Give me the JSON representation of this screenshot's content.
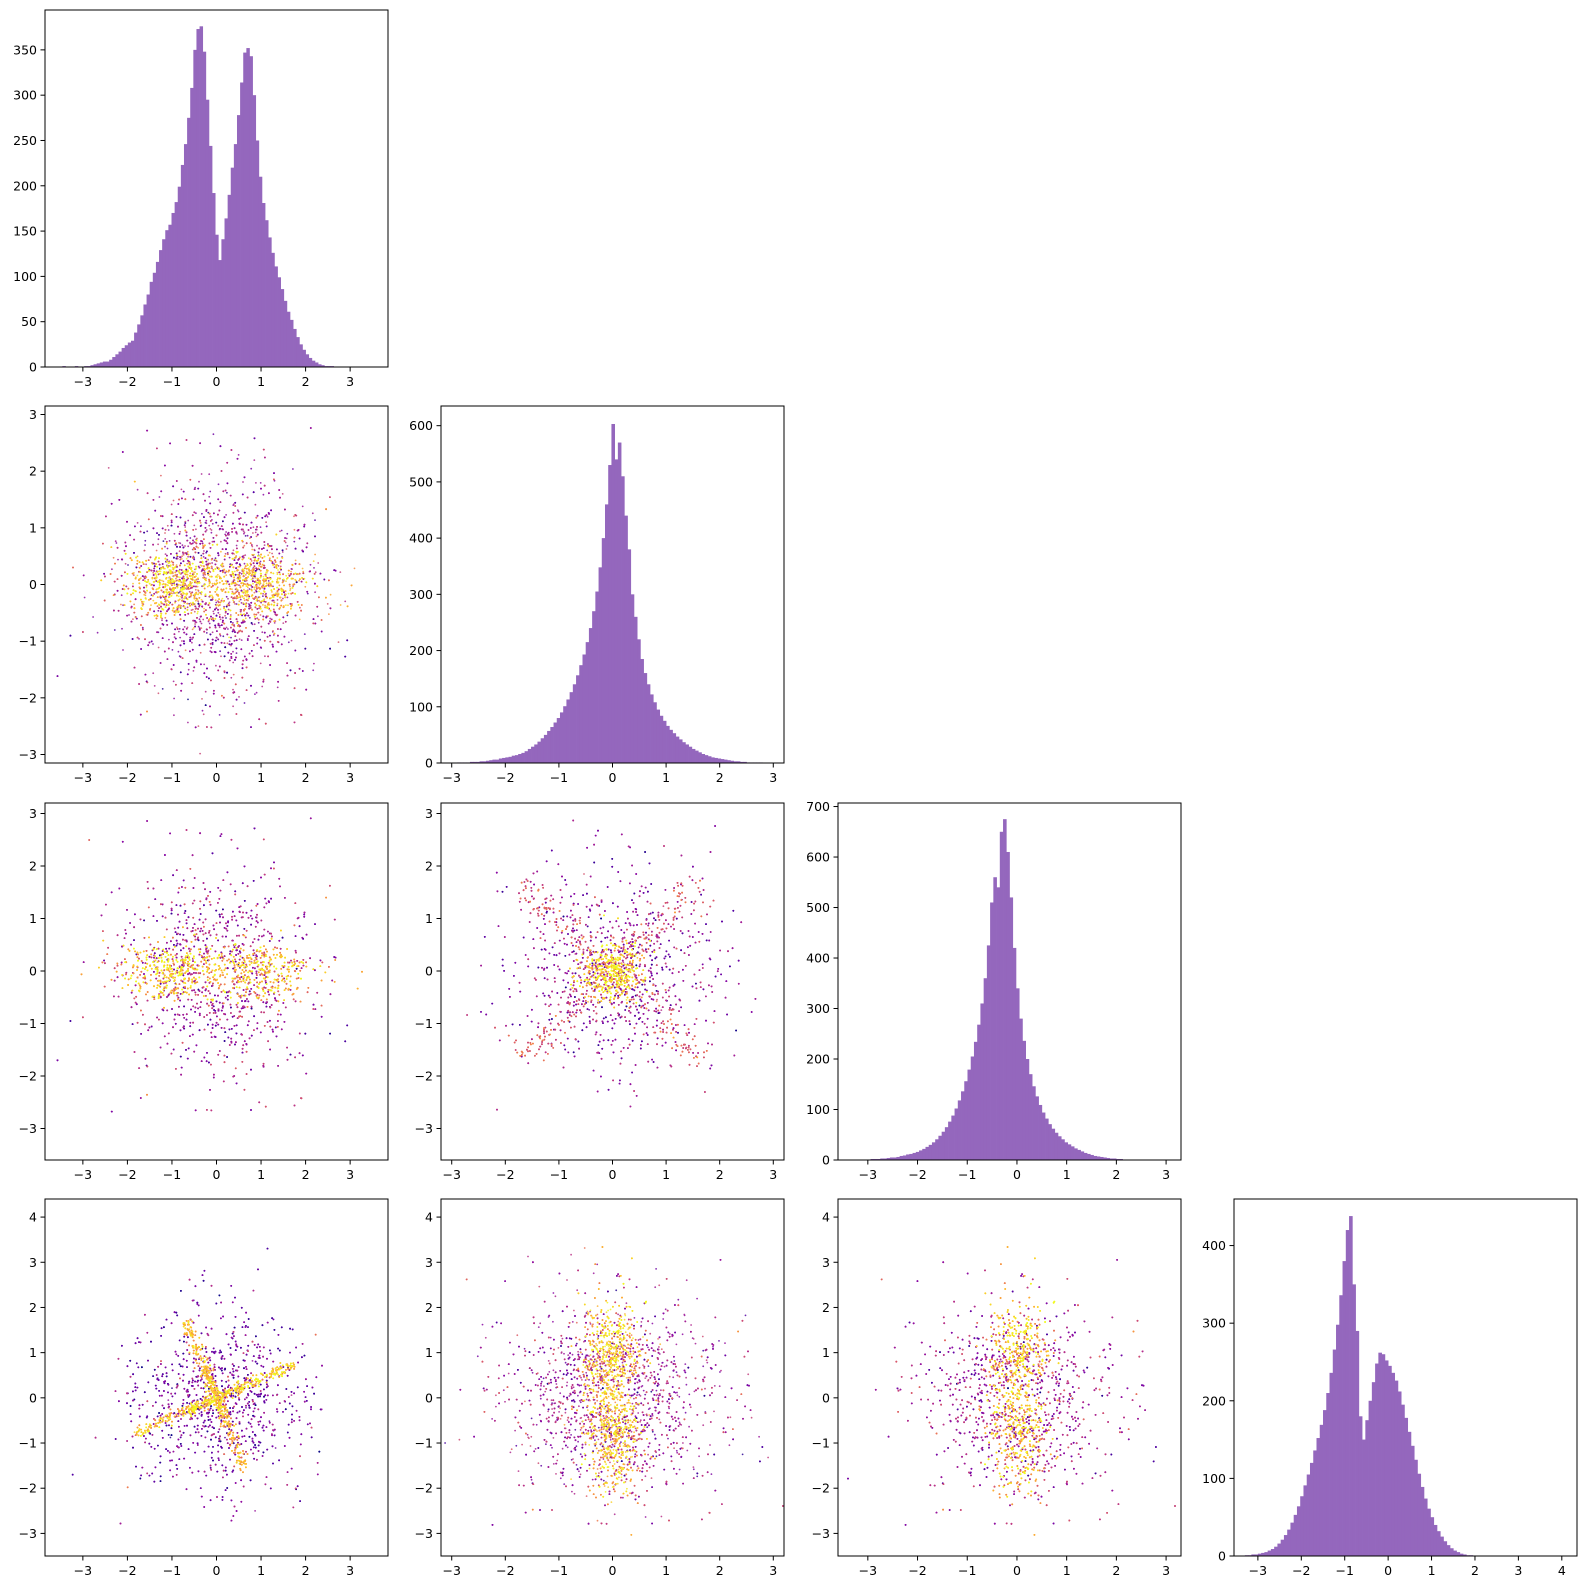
{
  "chart_data": [
    {
      "id": "hist-1",
      "type": "bar",
      "row": 0,
      "col": 0,
      "title": "",
      "xlabel": "",
      "ylabel": "",
      "color": "#9467bd",
      "xlim": [
        -3.85,
        3.85
      ],
      "ylim": [
        0,
        394
      ],
      "xticks": [
        -3,
        -2,
        -1,
        0,
        1,
        2,
        3
      ],
      "yticks": [
        0,
        50,
        100,
        150,
        200,
        250,
        300,
        350
      ],
      "bin_start": -3.6,
      "bin_width": 0.07,
      "counts": [
        0,
        0,
        1,
        0,
        0,
        0,
        1,
        0,
        0,
        1,
        1,
        2,
        3,
        4,
        5,
        6,
        6,
        8,
        11,
        14,
        17,
        21,
        24,
        27,
        29,
        38,
        47,
        57,
        69,
        80,
        94,
        104,
        116,
        129,
        141,
        151,
        157,
        170,
        182,
        199,
        223,
        246,
        275,
        308,
        350,
        373,
        376,
        348,
        295,
        244,
        192,
        146,
        118,
        141,
        164,
        190,
        220,
        246,
        278,
        314,
        347,
        352,
        343,
        300,
        250,
        210,
        181,
        162,
        143,
        126,
        111,
        99,
        86,
        73,
        61,
        52,
        42,
        33,
        25,
        19,
        14,
        10,
        7,
        5,
        3,
        2,
        1,
        1,
        1,
        0,
        0,
        0,
        0,
        0,
        0,
        0,
        0,
        0,
        0,
        0,
        0,
        0,
        0,
        0,
        0,
        0,
        0,
        0,
        0,
        0
      ]
    },
    {
      "id": "hist-2",
      "type": "bar",
      "row": 1,
      "col": 1,
      "title": "",
      "xlabel": "",
      "ylabel": "",
      "color": "#9467bd",
      "xlim": [
        -3.2,
        3.2
      ],
      "ylim": [
        0,
        635
      ],
      "xticks": [
        -3,
        -2,
        -1,
        0,
        1,
        2,
        3
      ],
      "yticks": [
        0,
        100,
        200,
        300,
        400,
        500,
        600
      ],
      "bin_start": -2.9,
      "bin_width": 0.06,
      "counts": [
        1,
        1,
        1,
        1,
        2,
        2,
        2,
        3,
        3,
        4,
        5,
        6,
        6,
        8,
        9,
        10,
        11,
        13,
        14,
        16,
        18,
        21,
        25,
        29,
        33,
        38,
        44,
        50,
        57,
        64,
        72,
        80,
        90,
        101,
        113,
        126,
        140,
        156,
        174,
        193,
        215,
        240,
        270,
        305,
        348,
        400,
        460,
        530,
        603,
        540,
        570,
        510,
        440,
        380,
        300,
        260,
        220,
        185,
        160,
        140,
        122,
        108,
        95,
        84,
        75,
        66,
        59,
        53,
        47,
        42,
        37,
        33,
        29,
        25,
        22,
        19,
        16,
        14,
        12,
        10,
        9,
        8,
        7,
        6,
        5,
        4,
        3,
        3,
        2,
        2,
        1,
        1,
        1,
        1,
        1,
        0,
        0,
        0,
        0,
        0
      ]
    },
    {
      "id": "hist-3",
      "type": "bar",
      "row": 2,
      "col": 2,
      "title": "",
      "xlabel": "",
      "ylabel": "",
      "color": "#9467bd",
      "xlim": [
        -3.6,
        3.3
      ],
      "ylim": [
        0,
        707
      ],
      "xticks": [
        -3,
        -2,
        -1,
        0,
        1,
        2,
        3
      ],
      "yticks": [
        0,
        100,
        200,
        300,
        400,
        500,
        600,
        700
      ],
      "bin_start": -3.4,
      "bin_width": 0.065,
      "counts": [
        0,
        0,
        0,
        1,
        0,
        1,
        1,
        2,
        2,
        2,
        3,
        3,
        4,
        5,
        5,
        6,
        8,
        9,
        11,
        12,
        14,
        16,
        19,
        22,
        26,
        30,
        35,
        41,
        48,
        56,
        65,
        76,
        88,
        102,
        118,
        136,
        156,
        179,
        205,
        234,
        268,
        310,
        360,
        425,
        510,
        560,
        540,
        650,
        675,
        610,
        520,
        420,
        340,
        280,
        236,
        200,
        170,
        146,
        126,
        109,
        94,
        82,
        71,
        62,
        54,
        47,
        41,
        35,
        31,
        27,
        23,
        20,
        17,
        14,
        12,
        10,
        8,
        7,
        6,
        5,
        4,
        3,
        3,
        2,
        2,
        1,
        1,
        1,
        1,
        0,
        0,
        0,
        0,
        0,
        0,
        0,
        0,
        0,
        0,
        0,
        0,
        0,
        0,
        0,
        0,
        0
      ]
    },
    {
      "id": "hist-4",
      "type": "bar",
      "row": 3,
      "col": 3,
      "title": "",
      "xlabel": "",
      "ylabel": "",
      "color": "#9467bd",
      "xlim": [
        -3.55,
        4.35
      ],
      "ylim": [
        0,
        460
      ],
      "xticks": [
        -3,
        -2,
        -1,
        0,
        1,
        2,
        3,
        4
      ],
      "yticks": [
        0,
        100,
        200,
        300,
        400
      ],
      "bin_start": -3.3,
      "bin_width": 0.075,
      "counts": [
        1,
        1,
        2,
        2,
        3,
        4,
        5,
        7,
        9,
        12,
        16,
        21,
        27,
        34,
        43,
        53,
        64,
        77,
        91,
        105,
        120,
        136,
        152,
        169,
        188,
        210,
        236,
        266,
        298,
        336,
        380,
        420,
        438,
        350,
        290,
        180,
        150,
        175,
        200,
        224,
        248,
        262,
        260,
        252,
        245,
        236,
        226,
        212,
        195,
        178,
        160,
        142,
        124,
        106,
        89,
        74,
        61,
        50,
        40,
        32,
        25,
        19,
        14,
        10,
        7,
        5,
        3,
        2,
        1,
        1,
        0,
        0,
        0,
        0,
        0,
        0,
        0,
        0,
        0,
        0,
        0,
        0,
        0,
        0,
        0,
        0,
        0,
        0,
        0,
        0,
        0,
        0,
        0,
        0,
        0,
        0,
        0,
        0,
        0,
        0,
        0,
        0,
        0,
        0,
        0
      ]
    },
    {
      "id": "scatter-2-1",
      "type": "scatter",
      "row": 1,
      "col": 0,
      "title": "",
      "xlabel": "",
      "ylabel": "",
      "xlim": [
        -3.85,
        3.85
      ],
      "ylim": [
        -3.15,
        3.15
      ],
      "xticks": [
        -3,
        -2,
        -1,
        0,
        1,
        2,
        3
      ],
      "yticks": [
        -3,
        -2,
        -1,
        0,
        1,
        2,
        3
      ],
      "cmap": "plasma",
      "n_points": 6000,
      "components": [
        {
          "kind": "gauss",
          "weight": 0.55,
          "cx": 0,
          "cy": 0,
          "sx": 1.05,
          "sy": 0.95,
          "hole": 0.25,
          "cval": 0.35
        },
        {
          "kind": "gauss",
          "weight": 0.22,
          "cx": -0.9,
          "cy": 0.0,
          "sx": 0.55,
          "sy": 0.28,
          "hole": 0,
          "cval": 0.9
        },
        {
          "kind": "gauss",
          "weight": 0.18,
          "cx": 0.85,
          "cy": 0.0,
          "sx": 0.55,
          "sy": 0.28,
          "hole": 0,
          "cval": 0.85
        },
        {
          "kind": "gauss",
          "weight": 0.05,
          "cx": 0,
          "cy": 0,
          "sx": 1.3,
          "sy": 0.4,
          "hole": 0,
          "cval": 0.7
        }
      ]
    },
    {
      "id": "scatter-3-1",
      "type": "scatter",
      "row": 2,
      "col": 0,
      "title": "",
      "xlabel": "",
      "ylabel": "",
      "xlim": [
        -3.85,
        3.85
      ],
      "ylim": [
        -3.6,
        3.2
      ],
      "xticks": [
        -3,
        -2,
        -1,
        0,
        1,
        2,
        3
      ],
      "yticks": [
        -3,
        -2,
        -1,
        0,
        1,
        2,
        3
      ],
      "cmap": "plasma",
      "n_points": 6000,
      "components": [
        {
          "kind": "gauss",
          "weight": 0.55,
          "cx": 0,
          "cy": 0,
          "sx": 1.05,
          "sy": 1.0,
          "hole": 0.25,
          "cval": 0.35
        },
        {
          "kind": "gauss",
          "weight": 0.22,
          "cx": -0.95,
          "cy": 0.0,
          "sx": 0.55,
          "sy": 0.25,
          "hole": 0,
          "cval": 0.9
        },
        {
          "kind": "gauss",
          "weight": 0.18,
          "cx": 0.9,
          "cy": 0.0,
          "sx": 0.6,
          "sy": 0.25,
          "hole": 0,
          "cval": 0.85
        },
        {
          "kind": "gauss",
          "weight": 0.05,
          "cx": 0,
          "cy": 0,
          "sx": 1.4,
          "sy": 0.35,
          "hole": 0,
          "cval": 0.7
        }
      ]
    },
    {
      "id": "scatter-3-2",
      "type": "scatter",
      "row": 2,
      "col": 1,
      "title": "",
      "xlabel": "",
      "ylabel": "",
      "xlim": [
        -3.2,
        3.2
      ],
      "ylim": [
        -3.6,
        3.2
      ],
      "xticks": [
        -3,
        -2,
        -1,
        0,
        1,
        2,
        3
      ],
      "yticks": [
        -3,
        -2,
        -1,
        0,
        1,
        2,
        3
      ],
      "cmap": "plasma",
      "n_points": 6000,
      "components": [
        {
          "kind": "gauss",
          "weight": 0.45,
          "cx": 0,
          "cy": 0,
          "sx": 0.95,
          "sy": 0.95,
          "hole": 0,
          "cval": 0.3
        },
        {
          "kind": "gauss",
          "weight": 0.25,
          "cx": 0,
          "cy": 0,
          "sx": 0.28,
          "sy": 0.28,
          "hole": 0,
          "cval": 0.92
        },
        {
          "kind": "line",
          "weight": 0.15,
          "angle": 45,
          "len": 2.4,
          "width": 0.18,
          "cval": 0.55
        },
        {
          "kind": "line",
          "weight": 0.15,
          "angle": -45,
          "len": 2.4,
          "width": 0.18,
          "cval": 0.55
        }
      ]
    },
    {
      "id": "scatter-4-1",
      "type": "scatter",
      "row": 3,
      "col": 0,
      "title": "",
      "xlabel": "",
      "ylabel": "",
      "xlim": [
        -3.85,
        3.85
      ],
      "ylim": [
        -3.5,
        4.4
      ],
      "xticks": [
        -3,
        -2,
        -1,
        0,
        1,
        2,
        3
      ],
      "yticks": [
        -3,
        -2,
        -1,
        0,
        1,
        2,
        3,
        4
      ],
      "cmap": "plasma",
      "n_points": 6000,
      "components": [
        {
          "kind": "gauss",
          "weight": 0.5,
          "cx": 0,
          "cy": 0,
          "sx": 0.95,
          "sy": 1.0,
          "hole": 0,
          "cval": 0.25
        },
        {
          "kind": "line",
          "weight": 0.16,
          "angle": 23,
          "len": 2.6,
          "width": 0.06,
          "cval": 0.9,
          "offset": 0.6
        },
        {
          "kind": "line",
          "weight": 0.12,
          "angle": 23,
          "len": 2.6,
          "width": 0.06,
          "cval": 0.85,
          "offset": -0.7
        },
        {
          "kind": "line",
          "weight": 0.12,
          "angle": -68,
          "len": 2.5,
          "width": 0.07,
          "cval": 0.85,
          "offset": -0.6
        },
        {
          "kind": "line",
          "weight": 0.1,
          "angle": -68,
          "len": 2.5,
          "width": 0.07,
          "cval": 0.8,
          "offset": 0.5
        }
      ]
    },
    {
      "id": "scatter-4-2",
      "type": "scatter",
      "row": 3,
      "col": 1,
      "title": "",
      "xlabel": "",
      "ylabel": "",
      "xlim": [
        -3.2,
        3.2
      ],
      "ylim": [
        -3.5,
        4.4
      ],
      "xticks": [
        -3,
        -2,
        -1,
        0,
        1,
        2,
        3
      ],
      "yticks": [
        -3,
        -2,
        -1,
        0,
        1,
        2,
        3,
        4
      ],
      "cmap": "plasma",
      "n_points": 6000,
      "components": [
        {
          "kind": "gauss",
          "weight": 0.55,
          "cx": 0,
          "cy": 0,
          "sx": 1.0,
          "sy": 1.05,
          "hole": 0.22,
          "cval": 0.35
        },
        {
          "kind": "gauss",
          "weight": 0.22,
          "cx": 0.0,
          "cy": 1.0,
          "sx": 0.25,
          "sy": 0.55,
          "hole": 0,
          "cval": 0.88
        },
        {
          "kind": "gauss",
          "weight": 0.18,
          "cx": 0.0,
          "cy": -0.85,
          "sx": 0.25,
          "sy": 0.55,
          "hole": 0,
          "cval": 0.88
        },
        {
          "kind": "gauss",
          "weight": 0.05,
          "cx": 0,
          "cy": 0,
          "sx": 0.35,
          "sy": 1.4,
          "hole": 0,
          "cval": 0.7
        }
      ]
    },
    {
      "id": "scatter-4-3",
      "type": "scatter",
      "row": 3,
      "col": 2,
      "title": "",
      "xlabel": "",
      "ylabel": "",
      "xlim": [
        -3.6,
        3.3
      ],
      "ylim": [
        -3.5,
        4.4
      ],
      "xticks": [
        -3,
        -2,
        -1,
        0,
        1,
        2,
        3
      ],
      "yticks": [
        -3,
        -2,
        -1,
        0,
        1,
        2,
        3,
        4
      ],
      "cmap": "plasma",
      "n_points": 6000,
      "components": [
        {
          "kind": "gauss",
          "weight": 0.55,
          "cx": 0,
          "cy": 0,
          "sx": 1.0,
          "sy": 1.05,
          "hole": 0.22,
          "cval": 0.35
        },
        {
          "kind": "gauss",
          "weight": 0.22,
          "cx": 0.05,
          "cy": 1.0,
          "sx": 0.28,
          "sy": 0.55,
          "hole": 0,
          "cval": 0.88
        },
        {
          "kind": "gauss",
          "weight": 0.18,
          "cx": 0.0,
          "cy": -0.85,
          "sx": 0.28,
          "sy": 0.55,
          "hole": 0,
          "cval": 0.88
        },
        {
          "kind": "gauss",
          "weight": 0.05,
          "cx": 0,
          "cy": 0,
          "sx": 0.35,
          "sy": 1.4,
          "hole": 0,
          "cval": 0.7
        }
      ]
    }
  ]
}
